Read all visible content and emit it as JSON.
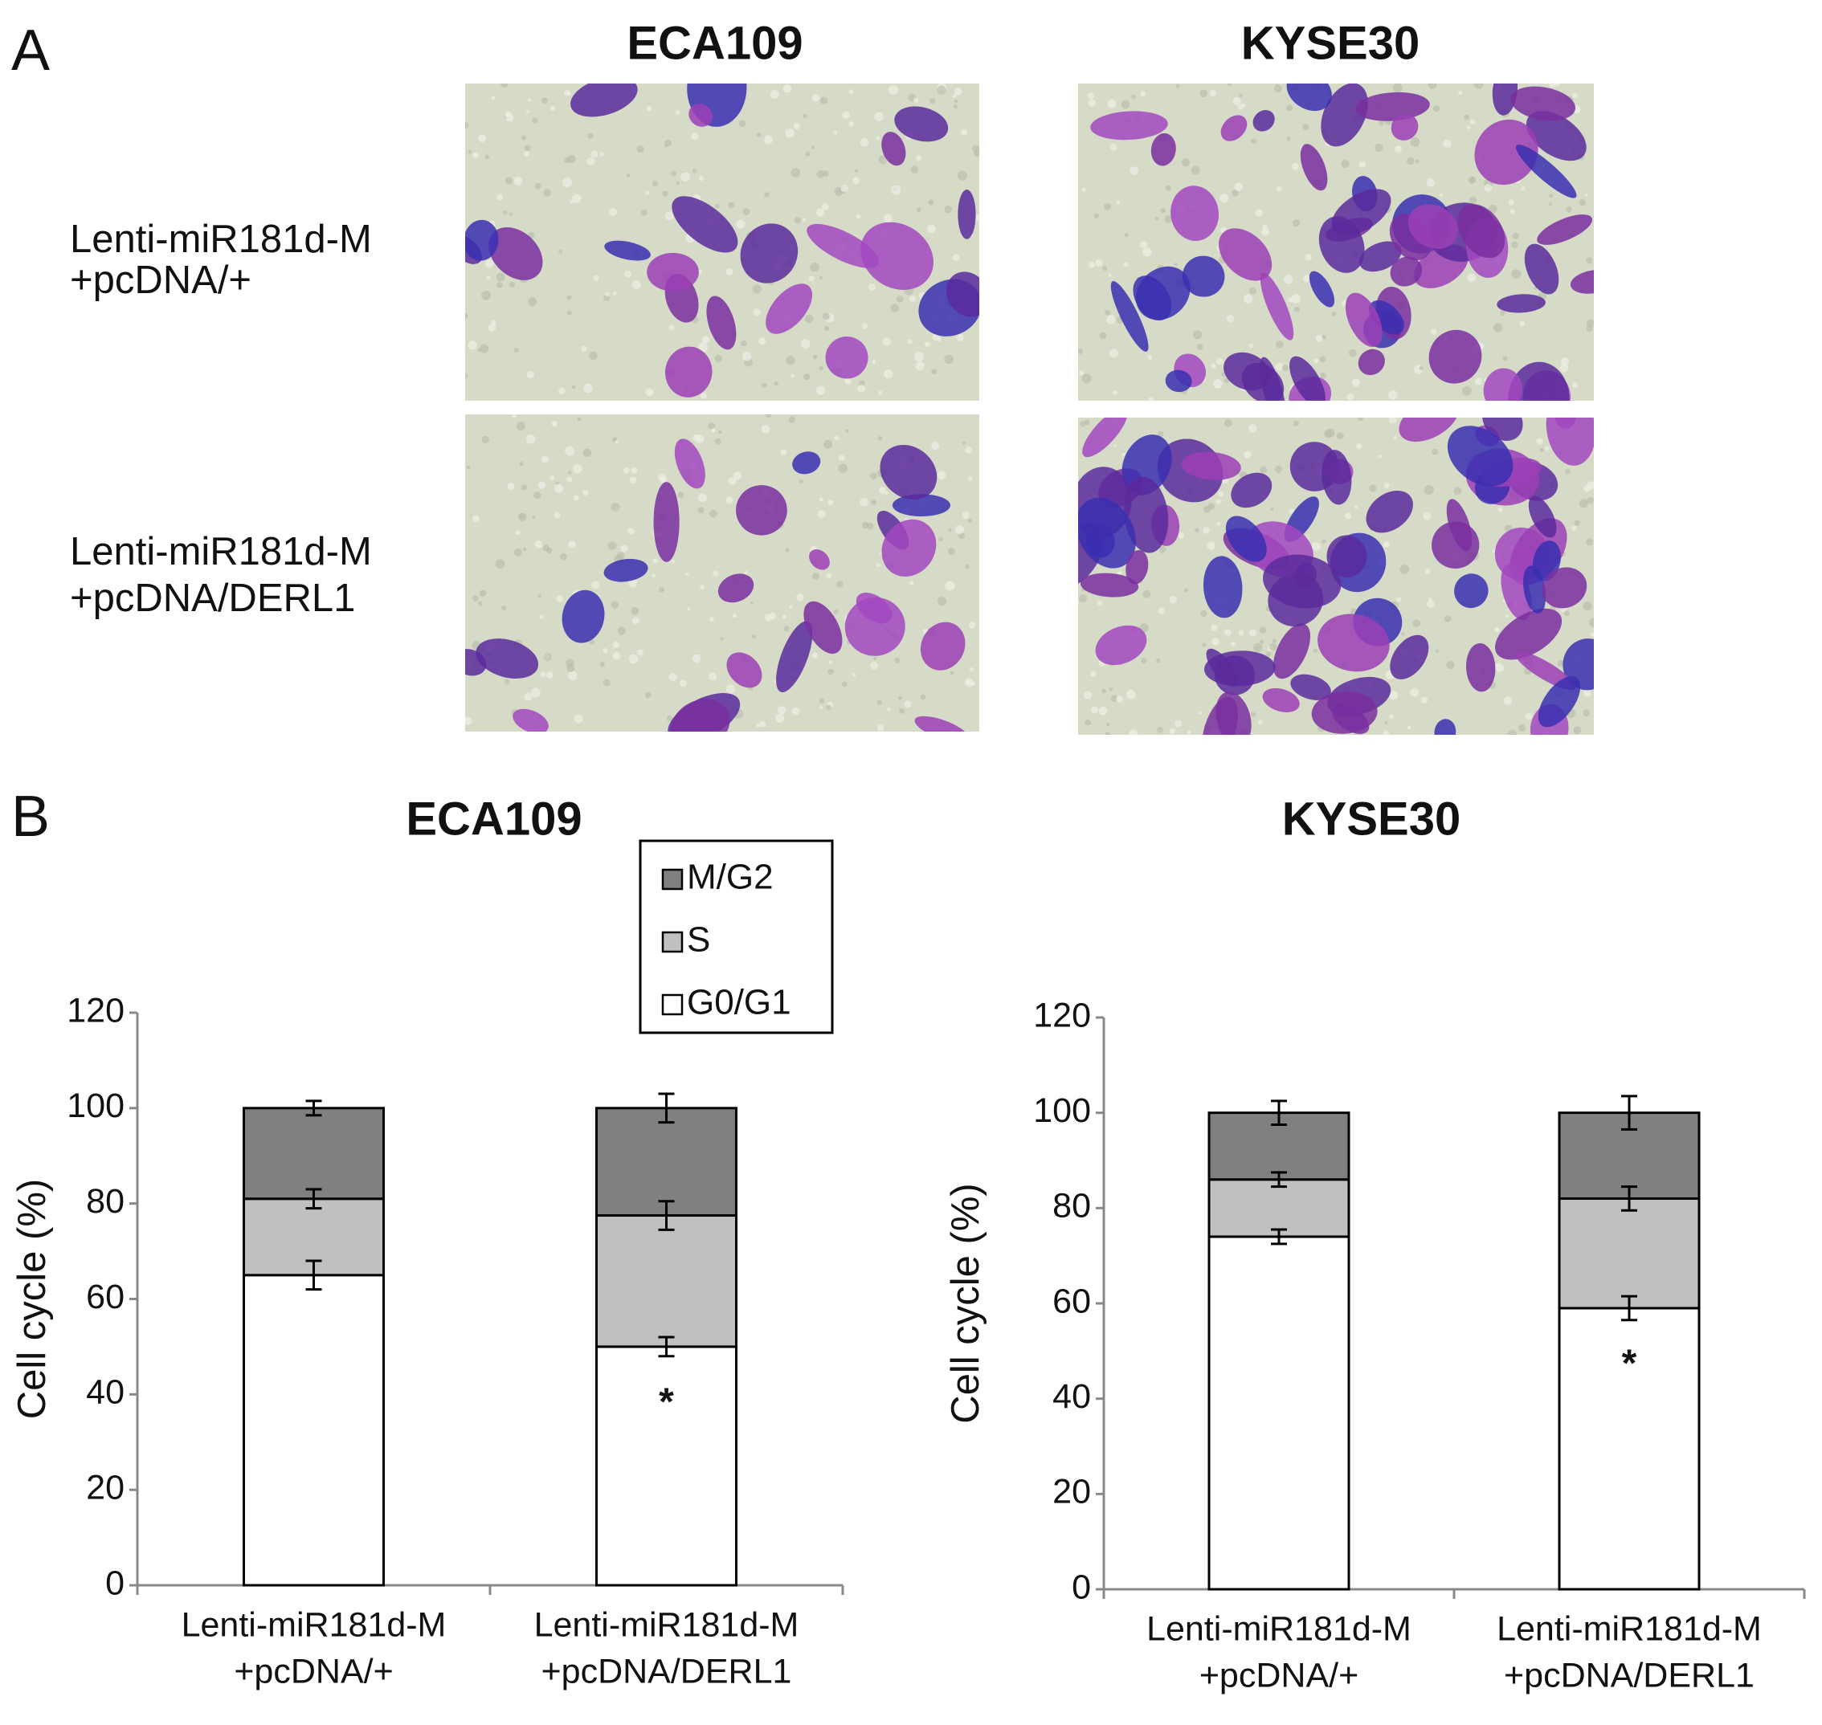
{
  "panel_a": {
    "label": "A",
    "columns": [
      "ECA109",
      "KYSE30"
    ],
    "rows": [
      [
        "Lenti-miR181d-M",
        "+pcDNA/+"
      ],
      [
        "Lenti-miR181d-M",
        "+pcDNA/DERL1"
      ]
    ]
  },
  "panel_b": {
    "label": "B"
  },
  "chart_data": [
    {
      "type": "stacked_bar",
      "title": "ECA109",
      "y_label": "Cell cycle (%)",
      "categories": [
        [
          "Lenti-miR181d-M",
          "+pcDNA/+"
        ],
        [
          "Lenti-miR181d-M",
          "+pcDNA/DERL1"
        ]
      ],
      "series": [
        {
          "name": "G0/G1",
          "color": "#ffffff",
          "values": [
            65,
            50
          ],
          "errors": [
            3,
            2
          ]
        },
        {
          "name": "S",
          "color": "#c0c0c0",
          "values": [
            16,
            27.5
          ],
          "errors": [
            2,
            3
          ]
        },
        {
          "name": "M/G2",
          "color": "#808080",
          "values": [
            19,
            22.5
          ],
          "errors": [
            1.5,
            3
          ]
        }
      ],
      "annotations": [
        {
          "text": "*",
          "category": 1
        }
      ],
      "ylim": [
        0,
        120
      ],
      "yticks": [
        0,
        20,
        40,
        60,
        80,
        100,
        120
      ],
      "legend": "top-right"
    },
    {
      "type": "stacked_bar",
      "title": "KYSE30",
      "y_label": "Cell cycle (%)",
      "categories": [
        [
          "Lenti-miR181d-M",
          "+pcDNA/+"
        ],
        [
          "Lenti-miR181d-M",
          "+pcDNA/DERL1"
        ]
      ],
      "series": [
        {
          "color": "#ffffff",
          "values": [
            74,
            59
          ],
          "errors": [
            1.5,
            2.5
          ]
        },
        {
          "color": "#c0c0c0",
          "values": [
            12,
            23
          ],
          "errors": [
            1.5,
            2.5
          ]
        },
        {
          "color": "#808080",
          "values": [
            14,
            18
          ],
          "errors": [
            2.5,
            3.5
          ]
        }
      ],
      "annotations": [
        {
          "text": "*",
          "category": 1
        }
      ],
      "ylim": [
        0,
        120
      ],
      "yticks": [
        0,
        20,
        40,
        60,
        80,
        100,
        120
      ]
    }
  ]
}
